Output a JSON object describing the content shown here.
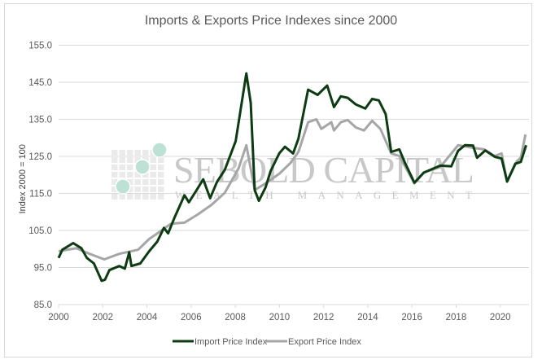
{
  "chart_data": {
    "type": "line",
    "title": "Imports & Exports Price Indexes since 2000",
    "xlabel": "",
    "ylabel": "Index 2000 = 100",
    "xlim": [
      2000,
      2021.3
    ],
    "ylim": [
      85,
      155
    ],
    "x_ticks": [
      "2000",
      "2002",
      "2004",
      "2006",
      "2008",
      "2010",
      "2012",
      "2014",
      "2016",
      "2018",
      "2020"
    ],
    "y_ticks": [
      "155.0",
      "145.0",
      "135.0",
      "125.0",
      "115.0",
      "105.0",
      "95.0",
      "85.0"
    ],
    "grid": "horizontal",
    "legend": "bottom",
    "series": [
      {
        "name": "Import Price Index",
        "color": "#0d3b12",
        "points": [
          [
            2000.0,
            97.6
          ],
          [
            2000.17,
            99.8
          ],
          [
            2000.66,
            101.6
          ],
          [
            2001.03,
            100.2
          ],
          [
            2001.28,
            97.6
          ],
          [
            2001.6,
            96.1
          ],
          [
            2001.95,
            91.4
          ],
          [
            2002.1,
            91.7
          ],
          [
            2002.3,
            94.3
          ],
          [
            2002.75,
            95.4
          ],
          [
            2003.0,
            94.7
          ],
          [
            2003.2,
            99.1
          ],
          [
            2003.3,
            95.4
          ],
          [
            2003.7,
            96.1
          ],
          [
            2004.1,
            99.4
          ],
          [
            2004.47,
            102.0
          ],
          [
            2004.77,
            105.7
          ],
          [
            2004.96,
            104.2
          ],
          [
            2005.26,
            108.6
          ],
          [
            2005.7,
            114.5
          ],
          [
            2005.9,
            112.6
          ],
          [
            2006.25,
            115.9
          ],
          [
            2006.55,
            118.8
          ],
          [
            2006.86,
            113.7
          ],
          [
            2007.17,
            118.1
          ],
          [
            2007.53,
            121.4
          ],
          [
            2008.02,
            129.1
          ],
          [
            2008.5,
            147.4
          ],
          [
            2008.7,
            139.4
          ],
          [
            2008.88,
            115.9
          ],
          [
            2009.07,
            113.0
          ],
          [
            2009.37,
            116.6
          ],
          [
            2009.6,
            121.0
          ],
          [
            2009.99,
            125.8
          ],
          [
            2010.25,
            127.6
          ],
          [
            2010.62,
            125.8
          ],
          [
            2010.86,
            129.8
          ],
          [
            2011.3,
            143.0
          ],
          [
            2011.73,
            141.6
          ],
          [
            2012.16,
            144.1
          ],
          [
            2012.47,
            138.3
          ],
          [
            2012.78,
            141.2
          ],
          [
            2013.09,
            140.8
          ],
          [
            2013.46,
            139.0
          ],
          [
            2013.89,
            137.9
          ],
          [
            2014.2,
            140.5
          ],
          [
            2014.5,
            140.1
          ],
          [
            2014.81,
            136.4
          ],
          [
            2015.06,
            126.2
          ],
          [
            2015.43,
            126.9
          ],
          [
            2015.68,
            123.3
          ],
          [
            2016.11,
            117.9
          ],
          [
            2016.54,
            120.6
          ],
          [
            2017.28,
            122.5
          ],
          [
            2017.78,
            122.3
          ],
          [
            2018.09,
            126.5
          ],
          [
            2018.4,
            128.0
          ],
          [
            2018.77,
            127.9
          ],
          [
            2018.95,
            124.6
          ],
          [
            2019.32,
            126.6
          ],
          [
            2019.75,
            124.9
          ],
          [
            2020.06,
            124.4
          ],
          [
            2020.31,
            118.2
          ],
          [
            2020.68,
            123.0
          ],
          [
            2020.93,
            123.5
          ],
          [
            2021.17,
            128.0
          ]
        ]
      },
      {
        "name": "Export Price Index",
        "color": "#a6a6a6",
        "points": [
          [
            2000.0,
            99.4
          ],
          [
            2000.8,
            100.2
          ],
          [
            2001.4,
            98.7
          ],
          [
            2002.07,
            97.2
          ],
          [
            2002.75,
            98.7
          ],
          [
            2003.6,
            99.8
          ],
          [
            2004.1,
            102.7
          ],
          [
            2004.47,
            104.2
          ],
          [
            2005.08,
            106.8
          ],
          [
            2005.7,
            107.1
          ],
          [
            2006.3,
            109.3
          ],
          [
            2006.92,
            111.9
          ],
          [
            2007.53,
            115.2
          ],
          [
            2008.15,
            121.8
          ],
          [
            2008.5,
            128.0
          ],
          [
            2008.88,
            115.9
          ],
          [
            2009.37,
            117.7
          ],
          [
            2009.99,
            120.3
          ],
          [
            2010.5,
            123.2
          ],
          [
            2010.86,
            126.2
          ],
          [
            2011.3,
            134.2
          ],
          [
            2011.67,
            135.0
          ],
          [
            2011.9,
            132.4
          ],
          [
            2012.35,
            134.2
          ],
          [
            2012.47,
            132.0
          ],
          [
            2012.78,
            134.2
          ],
          [
            2013.09,
            134.8
          ],
          [
            2013.46,
            132.8
          ],
          [
            2013.83,
            132.0
          ],
          [
            2014.2,
            134.6
          ],
          [
            2014.57,
            132.4
          ],
          [
            2015.06,
            125.8
          ],
          [
            2015.43,
            125.1
          ],
          [
            2016.11,
            117.7
          ],
          [
            2016.54,
            120.7
          ],
          [
            2017.28,
            122.1
          ],
          [
            2018.09,
            128.0
          ],
          [
            2018.77,
            127.3
          ],
          [
            2019.26,
            126.9
          ],
          [
            2019.75,
            125.1
          ],
          [
            2020.06,
            125.8
          ],
          [
            2020.31,
            118.1
          ],
          [
            2020.74,
            123.6
          ],
          [
            2020.93,
            124.7
          ],
          [
            2021.14,
            130.9
          ]
        ]
      }
    ]
  },
  "watermark": {
    "line1": "SEBOLD CAPITAL",
    "line2": "WEALTH MANAGEMENT"
  }
}
